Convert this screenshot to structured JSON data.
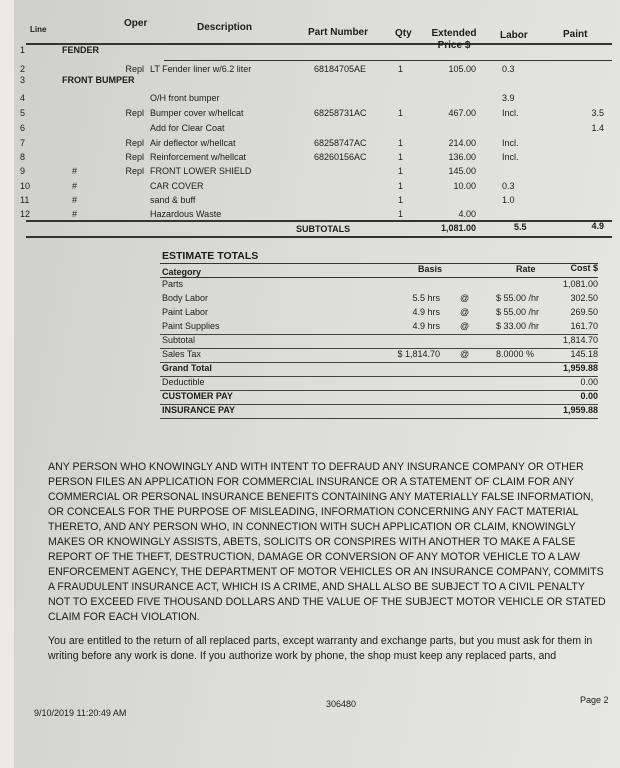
{
  "columns": {
    "line": "Line",
    "oper": "Oper",
    "description": "Description",
    "part_number": "Part Number",
    "qty": "Qty",
    "extended_price": "Extended Price $",
    "labor": "Labor",
    "paint": "Paint"
  },
  "rows": [
    {
      "line": "1",
      "flag": "",
      "oper": "",
      "description": "FENDER",
      "part": "",
      "qty": "",
      "price": "",
      "labor": "",
      "paint": "",
      "section": true
    },
    {
      "line": "2",
      "flag": "",
      "oper": "Repl",
      "description": "LT Fender liner w/6.2 liter",
      "part": "68184705AE",
      "qty": "1",
      "price": "105.00",
      "labor": "0.3",
      "paint": ""
    },
    {
      "line": "3",
      "flag": "",
      "oper": "",
      "description": "FRONT BUMPER",
      "part": "",
      "qty": "",
      "price": "",
      "labor": "",
      "paint": "",
      "section": true
    },
    {
      "line": "4",
      "flag": "",
      "oper": "",
      "description": "O/H front bumper",
      "part": "",
      "qty": "",
      "price": "",
      "labor": "3.9",
      "paint": ""
    },
    {
      "line": "5",
      "flag": "",
      "oper": "Repl",
      "description": "Bumper cover w/hellcat",
      "part": "68258731AC",
      "qty": "1",
      "price": "467.00",
      "labor": "Incl.",
      "paint": "3.5"
    },
    {
      "line": "6",
      "flag": "",
      "oper": "",
      "description": "Add for Clear Coat",
      "part": "",
      "qty": "",
      "price": "",
      "labor": "",
      "paint": "1.4"
    },
    {
      "line": "7",
      "flag": "",
      "oper": "Repl",
      "description": "Air deflector w/hellcat",
      "part": "68258747AC",
      "qty": "1",
      "price": "214.00",
      "labor": "Incl.",
      "paint": ""
    },
    {
      "line": "8",
      "flag": "",
      "oper": "Repl",
      "description": "Reinforcement w/hellcat",
      "part": "68260156AC",
      "qty": "1",
      "price": "136.00",
      "labor": "Incl.",
      "paint": ""
    },
    {
      "line": "9",
      "flag": "#",
      "oper": "Repl",
      "description": "FRONT LOWER SHIELD",
      "part": "",
      "qty": "1",
      "price": "145.00",
      "labor": "",
      "paint": ""
    },
    {
      "line": "10",
      "flag": "#",
      "oper": "",
      "description": "CAR COVER",
      "part": "",
      "qty": "1",
      "price": "10.00",
      "labor": "0.3",
      "paint": ""
    },
    {
      "line": "11",
      "flag": "#",
      "oper": "",
      "description": "sand & buff",
      "part": "",
      "qty": "1",
      "price": "",
      "labor": "1.0",
      "paint": ""
    },
    {
      "line": "12",
      "flag": "#",
      "oper": "",
      "description": "Hazardous Waste",
      "part": "",
      "qty": "1",
      "price": "4.00",
      "labor": "",
      "paint": ""
    }
  ],
  "subtotals": {
    "label": "SUBTOTALS",
    "price": "1,081.00",
    "labor": "5.5",
    "paint": "4.9"
  },
  "estimate_totals": {
    "title": "ESTIMATE TOTALS",
    "headers": {
      "category": "Category",
      "basis": "Basis",
      "rate": "Rate",
      "cost": "Cost $"
    },
    "rows": [
      {
        "category": "Parts",
        "basis": "",
        "at": "",
        "rate": "",
        "cost": "1,081.00",
        "bold": false
      },
      {
        "category": "Body Labor",
        "basis": "5.5 hrs",
        "at": "@",
        "rate": "$ 55.00 /hr",
        "cost": "302.50",
        "bold": false
      },
      {
        "category": "Paint Labor",
        "basis": "4.9 hrs",
        "at": "@",
        "rate": "$ 55.00 /hr",
        "cost": "269.50",
        "bold": false
      },
      {
        "category": "Paint Supplies",
        "basis": "4.9 hrs",
        "at": "@",
        "rate": "$ 33.00 /hr",
        "cost": "161.70",
        "bold": false
      },
      {
        "category": "Subtotal",
        "basis": "",
        "at": "",
        "rate": "",
        "cost": "1,814.70",
        "bold": false
      },
      {
        "category": "Sales Tax",
        "basis": "$ 1,814.70",
        "at": "@",
        "rate": "8.0000 %",
        "cost": "145.18",
        "bold": false
      },
      {
        "category": "Grand Total",
        "basis": "",
        "at": "",
        "rate": "",
        "cost": "1,959.88",
        "bold": true
      },
      {
        "category": "Deductible",
        "basis": "",
        "at": "",
        "rate": "",
        "cost": "0.00",
        "bold": false
      },
      {
        "category": "CUSTOMER PAY",
        "basis": "",
        "at": "",
        "rate": "",
        "cost": "0.00",
        "bold": true
      },
      {
        "category": "INSURANCE PAY",
        "basis": "",
        "at": "",
        "rate": "",
        "cost": "1,959.88",
        "bold": true
      }
    ]
  },
  "legal": {
    "fraud_notice": "ANY PERSON WHO KNOWINGLY AND WITH INTENT TO DEFRAUD ANY INSURANCE COMPANY OR OTHER PERSON FILES AN APPLICATION FOR COMMERCIAL INSURANCE OR A STATEMENT OF CLAIM FOR ANY COMMERCIAL OR PERSONAL INSURANCE BENEFITS CONTAINING ANY MATERIALLY FALSE INFORMATION, OR CONCEALS FOR THE PURPOSE OF MISLEADING, INFORMATION CONCERNING ANY FACT MATERIAL THERETO, AND ANY PERSON WHO, IN CONNECTION WITH SUCH APPLICATION OR CLAIM, KNOWINGLY MAKES OR KNOWINGLY ASSISTS, ABETS, SOLICITS OR CONSPIRES WITH ANOTHER TO MAKE A FALSE REPORT OF THE THEFT, DESTRUCTION, DAMAGE OR CONVERSION OF ANY MOTOR VEHICLE TO A LAW ENFORCEMENT AGENCY, THE DEPARTMENT OF MOTOR VEHICLES OR AN INSURANCE COMPANY, COMMITS A FRAUDULENT INSURANCE ACT, WHICH IS A CRIME, AND SHALL ALSO BE SUBJECT TO A CIVIL PENALTY NOT TO EXCEED FIVE THOUSAND DOLLARS AND THE VALUE OF THE SUBJECT MOTOR VEHICLE OR STATED CLAIM FOR EACH VIOLATION.",
    "parts_notice": "You are entitled to the return of all replaced parts, except warranty and exchange parts, but you must ask for them in writing before any work is done. If you authorize work by phone, the shop must keep any replaced parts, and"
  },
  "footer": {
    "timestamp": "9/10/2019 11:20:49 AM",
    "doc_number": "306480",
    "page": "Page 2"
  }
}
